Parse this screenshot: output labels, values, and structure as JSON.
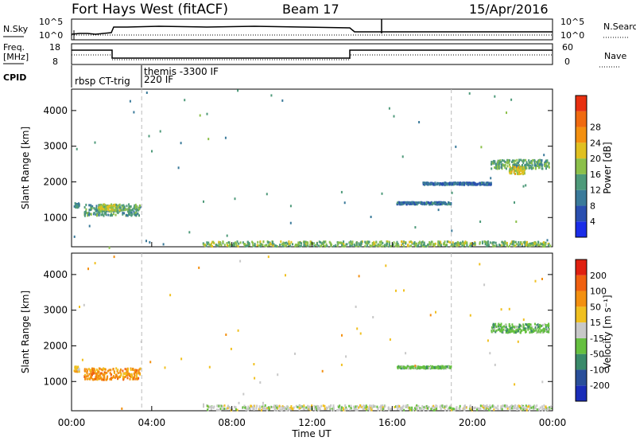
{
  "header": {
    "left": "Fort Hays West (fitACF)",
    "center": "Beam 17",
    "right": "15/Apr/2016"
  },
  "sky_panel": {
    "left_label": "N.Sky",
    "right_label": "N.Search",
    "left_ticks": [
      "10^5",
      "10^0"
    ],
    "right_ticks": [
      "10^5",
      "10^0"
    ]
  },
  "freq_panel": {
    "left_label_line1": "Freq.",
    "left_label_line2": "[MHz]",
    "right_label": "Nave",
    "left_ticks": [
      "18",
      "8"
    ],
    "right_ticks": [
      "60",
      "0"
    ]
  },
  "cpid_panel": {
    "label": "CPID",
    "entries": [
      {
        "text": "rbsp CT-trig"
      },
      {
        "text": "themis -3300 IF"
      },
      {
        "text": "220 IF"
      }
    ]
  },
  "x_axis": {
    "label": "Time UT",
    "ticks": [
      "00:00",
      "04:00",
      "08:00",
      "12:00",
      "16:00",
      "20:00",
      "00:00"
    ]
  },
  "colors": {
    "frame": "#000000",
    "marker_line": "#bbbbbb"
  },
  "chart_data": [
    {
      "type": "line",
      "panel": "sky_noise",
      "x_unit": "hours UT",
      "x_range": [
        0,
        24
      ],
      "series": [
        {
          "name": "N.Sky",
          "style": "solid",
          "x": [
            0,
            1.9,
            2.0,
            13.9,
            14.0,
            24
          ],
          "y_level": [
            "high",
            "high",
            "higher",
            "higher",
            "high",
            "high"
          ]
        },
        {
          "name": "N.Search",
          "style": "dotted",
          "x": [
            0,
            24
          ],
          "y_level": [
            "high",
            "high"
          ]
        }
      ]
    },
    {
      "type": "line",
      "panel": "frequency_nave",
      "x_unit": "hours UT",
      "x_range": [
        0,
        24
      ],
      "series": [
        {
          "name": "Freq.",
          "style": "solid",
          "x": [
            0,
            1.9,
            1.9,
            13.95,
            13.95,
            24
          ],
          "y": [
            14.5,
            14.5,
            11.2,
            11.2,
            14.5,
            14.5
          ]
        },
        {
          "name": "Nave",
          "style": "dotted",
          "x": [
            0,
            1.9,
            1.9,
            13.95,
            13.95,
            24
          ],
          "y": [
            15,
            15,
            10,
            10,
            15,
            15
          ]
        }
      ]
    },
    {
      "type": "heatmap",
      "panel": "power",
      "xlabel": "Time UT",
      "ylabel": "Slant Range [km]",
      "xlim": [
        0,
        24
      ],
      "ylim": [
        180,
        4600
      ],
      "y_ticks": [
        1000,
        2000,
        3000,
        4000
      ],
      "colorbar": {
        "label": "Power [dB]",
        "ticks": [
          "4",
          "8",
          "12",
          "16",
          "20",
          "24",
          "28"
        ],
        "range": [
          0,
          30
        ],
        "colors": [
          "#1a2de8",
          "#2a4fb0",
          "#3a7a9a",
          "#4e9a7a",
          "#8cc04a",
          "#e0c020",
          "#f39010",
          "#f06a10",
          "#e83010"
        ]
      },
      "vertical_markers_hours": [
        3.5,
        18.95
      ],
      "clusters": [
        {
          "t": [
            0.1,
            0.35
          ],
          "r": [
            1300,
            1450
          ],
          "value": 10
        },
        {
          "t": [
            0.6,
            3.4
          ],
          "r": [
            1080,
            1400
          ],
          "value": 11
        },
        {
          "t": [
            1.3,
            2.4
          ],
          "r": [
            1200,
            1400
          ],
          "value": 16
        },
        {
          "t": [
            20.9,
            23.8
          ],
          "r": [
            2400,
            2650
          ],
          "value": 12
        },
        {
          "t": [
            21.8,
            22.6
          ],
          "r": [
            2250,
            2450
          ],
          "value": 18
        },
        {
          "t": [
            16.2,
            18.9
          ],
          "r": [
            1400,
            1460
          ],
          "value": 7
        },
        {
          "t": [
            6.5,
            24
          ],
          "r": [
            200,
            360
          ],
          "value": 14
        },
        {
          "t": [
            17.5,
            20.9
          ],
          "r": [
            1950,
            2010
          ],
          "value": 6
        }
      ]
    },
    {
      "type": "heatmap",
      "panel": "velocity",
      "xlabel": "Time UT",
      "ylabel": "Slant Range [km]",
      "xlim": [
        0,
        24
      ],
      "ylim": [
        180,
        4600
      ],
      "y_ticks": [
        1000,
        2000,
        3000,
        4000
      ],
      "colorbar": {
        "label": "Velocity [m s⁻¹]",
        "ticks": [
          "200",
          "100",
          "50",
          "15",
          "-15",
          "-50",
          "-100",
          "-200"
        ],
        "colors": [
          "#1a2db8",
          "#2a4f9a",
          "#3a8a6a",
          "#66c040",
          "#c8c8c8",
          "#f0c020",
          "#f39010",
          "#f06010",
          "#e02010"
        ]
      },
      "vertical_markers_hours": [
        3.5,
        18.95
      ],
      "clusters": [
        {
          "t": [
            0.1,
            0.35
          ],
          "r": [
            1300,
            1450
          ],
          "value": "-50"
        },
        {
          "t": [
            0.6,
            3.4
          ],
          "r": [
            1080,
            1400
          ],
          "value": "-100"
        },
        {
          "t": [
            20.9,
            23.8
          ],
          "r": [
            2400,
            2650
          ],
          "value": "15"
        },
        {
          "t": [
            16.2,
            18.9
          ],
          "r": [
            1400,
            1460
          ],
          "value": "15"
        },
        {
          "t": [
            6.5,
            24
          ],
          "r": [
            200,
            360
          ],
          "value": "-15"
        }
      ]
    }
  ]
}
